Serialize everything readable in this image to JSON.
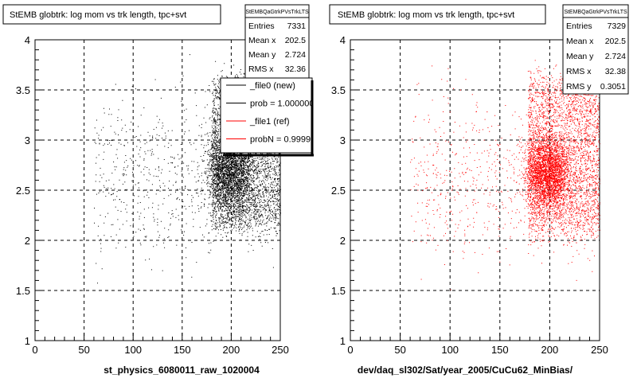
{
  "chart_data": [
    {
      "type": "scatter",
      "title": "StEMB globtrk: log mom vs trk length, tpc+svt",
      "xlabel": "st_physics_6080011_raw_1020004",
      "ylabel": "",
      "xlim": [
        0,
        250
      ],
      "ylim": [
        1,
        4
      ],
      "x_ticks": [
        "0",
        "50",
        "100",
        "150",
        "200",
        "250"
      ],
      "y_ticks": [
        "1",
        "1.5",
        "2",
        "2.5",
        "3",
        "3.5",
        "4"
      ],
      "grid": true,
      "point_color": "#000000",
      "stats": {
        "header": "StEMBQaGtrkPVsTrkLTS",
        "rows": [
          {
            "label": "Entries",
            "value": "7331"
          },
          {
            "label": "Mean x",
            "value": "202.5"
          },
          {
            "label": "Mean y",
            "value": "2.724"
          },
          {
            "label": "RMS x",
            "value": "32.36"
          }
        ]
      },
      "legend": {
        "placement": "top-right",
        "entries": [
          {
            "label": "_file0 (new)",
            "color": "#000000"
          },
          {
            "label": "prob = 1.000000",
            "color": "#000000"
          },
          {
            "label": "_file1 (ref)",
            "color": "#ff0000"
          },
          {
            "label": "probN = 0.999910",
            "color": "#ff0000"
          }
        ]
      },
      "distribution": {
        "dense_x": [
          180,
          250
        ],
        "dense_y": [
          2.15,
          3.6
        ],
        "core_x": [
          182,
          215
        ],
        "core_y": [
          2.35,
          3.05
        ],
        "sparse_x": [
          60,
          250
        ],
        "sparse_y": [
          1.95,
          3.9
        ]
      }
    },
    {
      "type": "scatter",
      "title": "StEMB globtrk: log mom vs trk length, tpc+svt",
      "xlabel": "dev/daq_sl302/Sat/year_2005/CuCu62_MinBias/",
      "ylabel": "",
      "xlim": [
        0,
        250
      ],
      "ylim": [
        1,
        4
      ],
      "x_ticks": [
        "0",
        "50",
        "100",
        "150",
        "200",
        "250"
      ],
      "y_ticks": [
        "1",
        "1.5",
        "2",
        "2.5",
        "3",
        "3.5",
        "4"
      ],
      "grid": true,
      "point_color": "#ff0000",
      "stats": {
        "header": "StEMBQaGtrkPVsTrkLTS",
        "rows": [
          {
            "label": "Entries",
            "value": "7329"
          },
          {
            "label": "Mean x",
            "value": "202.5"
          },
          {
            "label": "Mean y",
            "value": "2.724"
          },
          {
            "label": "RMS x",
            "value": "32.38"
          },
          {
            "label": "RMS y",
            "value": "0.3051"
          }
        ]
      },
      "distribution": {
        "dense_x": [
          178,
          250
        ],
        "dense_y": [
          2.1,
          3.6
        ],
        "core_x": [
          182,
          212
        ],
        "core_y": [
          2.4,
          2.95
        ],
        "sparse_x": [
          60,
          250
        ],
        "sparse_y": [
          1.95,
          3.9
        ]
      }
    }
  ]
}
